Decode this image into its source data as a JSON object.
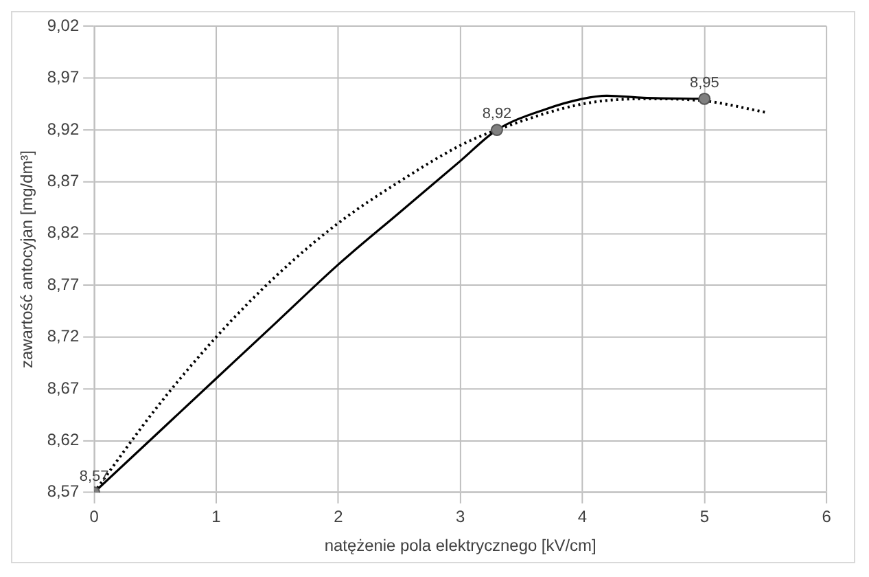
{
  "chart_data": {
    "type": "line",
    "xlabel": "natężenie pola elektrycznego [kV/cm]",
    "ylabel": "zawartość antocyjan [mg/dm³]",
    "xlim": [
      0,
      6
    ],
    "xticks": [
      0,
      1,
      2,
      3,
      4,
      5,
      6
    ],
    "ylim": [
      8.57,
      9.02
    ],
    "yticks": [
      {
        "value": 8.57,
        "label": "8,57"
      },
      {
        "value": 8.62,
        "label": "8,62"
      },
      {
        "value": 8.67,
        "label": "8,67"
      },
      {
        "value": 8.72,
        "label": "8,72"
      },
      {
        "value": 8.77,
        "label": "8,77"
      },
      {
        "value": 8.82,
        "label": "8,82"
      },
      {
        "value": 8.87,
        "label": "8,87"
      },
      {
        "value": 8.92,
        "label": "8,92"
      },
      {
        "value": 8.97,
        "label": "8,97"
      },
      {
        "value": 9.02,
        "label": "9,02"
      }
    ],
    "grid": true,
    "legend": false,
    "series": [
      {
        "color": "#000000",
        "line_style": "solid",
        "marker": "none",
        "x": [
          0,
          0.5,
          1,
          1.5,
          2,
          2.5,
          3,
          3.3,
          3.7,
          4,
          4.2,
          4.5,
          5
        ],
        "values": [
          8.57,
          8.625,
          8.68,
          8.735,
          8.79,
          8.84,
          8.89,
          8.92,
          8.94,
          8.95,
          8.953,
          8.951,
          8.95
        ]
      },
      {
        "color": "#000000",
        "line_style": "dotted",
        "marker": "none",
        "x": [
          0,
          0.5,
          1,
          1.5,
          2,
          2.5,
          3,
          3.3,
          4,
          4.5,
          5,
          5.5
        ],
        "values": [
          8.57,
          8.65,
          8.72,
          8.78,
          8.83,
          8.87,
          8.905,
          8.92,
          8.945,
          8.95,
          8.948,
          8.937
        ]
      },
      {
        "type": "scatter",
        "color": "#808080",
        "marker": "circle",
        "x": [
          0,
          3.3,
          5
        ],
        "values": [
          8.57,
          8.92,
          8.95
        ],
        "value_labels": [
          "8,57",
          "8,92",
          "8,95"
        ]
      }
    ]
  }
}
